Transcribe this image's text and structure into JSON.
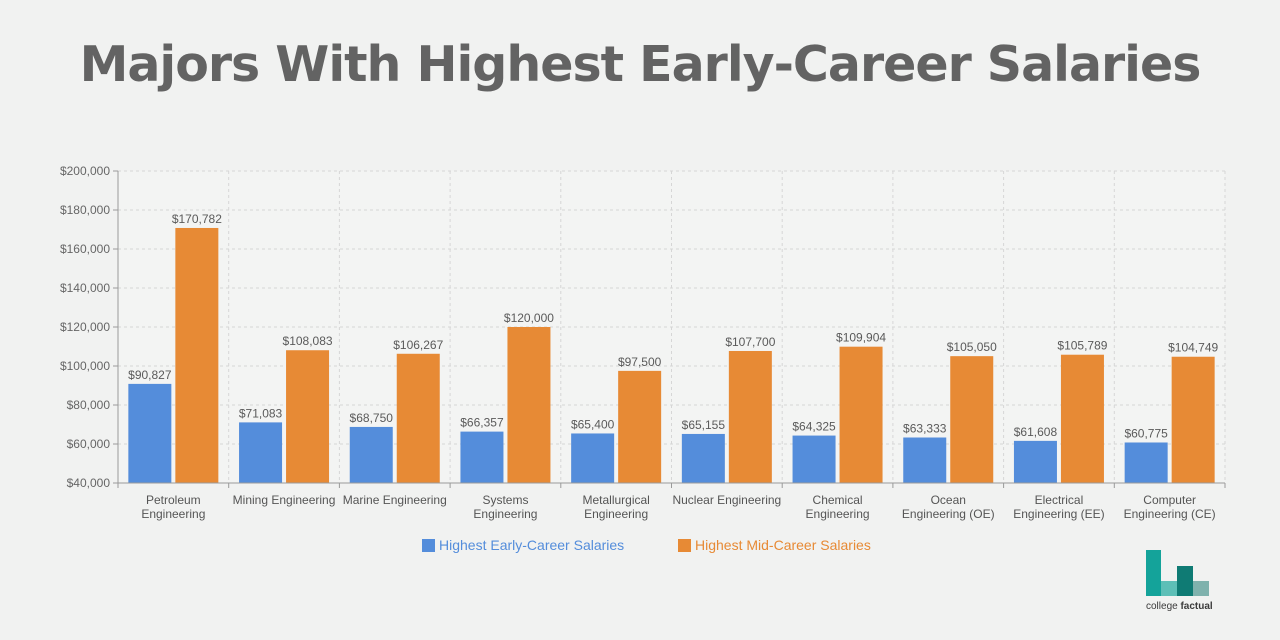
{
  "page": {
    "title": "Majors With Highest Early-Career Salaries"
  },
  "logo": {
    "text_regular": "college ",
    "text_bold": "factual",
    "colors": [
      "#14a39a",
      "#5dbfb7",
      "#0f7b74",
      "#7fb2ad"
    ]
  },
  "chart_data": {
    "type": "bar",
    "title": "Majors With Highest Early-Career Salaries",
    "xlabel": "",
    "ylabel": "",
    "ylim": [
      40000,
      200000
    ],
    "y_ticks": [
      {
        "value": 40000,
        "label": "$40,000"
      },
      {
        "value": 60000,
        "label": "$60,000"
      },
      {
        "value": 80000,
        "label": "$80,000"
      },
      {
        "value": 100000,
        "label": "$100,000"
      },
      {
        "value": 120000,
        "label": "$120,000"
      },
      {
        "value": 140000,
        "label": "$140,000"
      },
      {
        "value": 160000,
        "label": "$160,000"
      },
      {
        "value": 180000,
        "label": "$180,000"
      },
      {
        "value": 200000,
        "label": "$200,000"
      }
    ],
    "grid": true,
    "legend_position": "bottom",
    "categories": [
      [
        "Petroleum",
        "Engineering"
      ],
      [
        "Mining Engineering"
      ],
      [
        "Marine Engineering"
      ],
      [
        "Systems",
        "Engineering"
      ],
      [
        "Metallurgical",
        "Engineering"
      ],
      [
        "Nuclear Engineering"
      ],
      [
        "Chemical",
        "Engineering"
      ],
      [
        "Ocean",
        "Engineering (OE)"
      ],
      [
        "Electrical",
        "Engineering (EE)"
      ],
      [
        "Computer",
        "Engineering (CE)"
      ]
    ],
    "series": [
      {
        "name": "Highest Early-Career Salaries",
        "color": "#548ddb",
        "values": [
          90827,
          71083,
          68750,
          66357,
          65400,
          65155,
          64325,
          63333,
          61608,
          60775
        ],
        "labels": [
          "$90,827",
          "$71,083",
          "$68,750",
          "$66,357",
          "$65,400",
          "$65,155",
          "$64,325",
          "$63,333",
          "$61,608",
          "$60,775"
        ]
      },
      {
        "name": "Highest Mid-Career Salaries",
        "color": "#e78a35",
        "values": [
          170782,
          108083,
          106267,
          120000,
          97500,
          107700,
          109904,
          105050,
          105789,
          104749
        ],
        "labels": [
          "$170,782",
          "$108,083",
          "$106,267",
          "$120,000",
          "$97,500",
          "$107,700",
          "$109,904",
          "$105,050",
          "$105,789",
          "$104,749"
        ]
      }
    ]
  }
}
